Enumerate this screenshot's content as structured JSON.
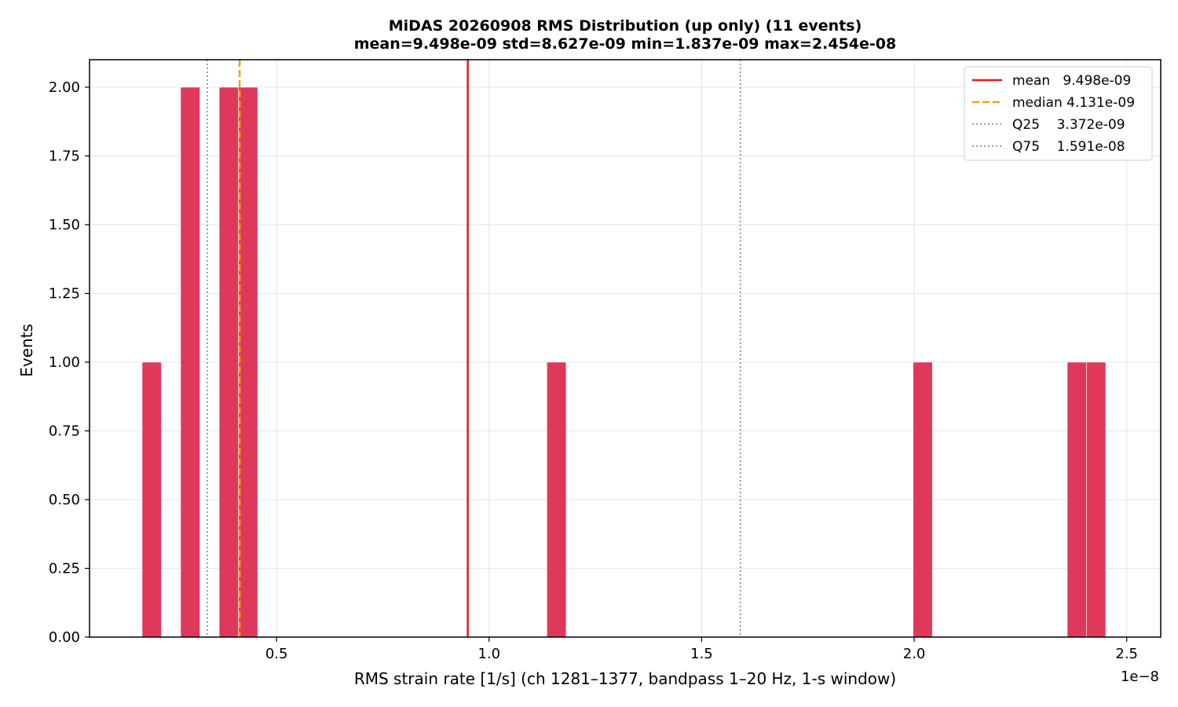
{
  "chart_data": {
    "type": "bar",
    "title": "MiDAS 20260908  RMS Distribution  (up only)  (11 events)",
    "subtitle": "mean=9.498e-09  std=8.627e-09  min=1.837e-09  max=2.454e-08",
    "xlabel": "RMS strain rate [1/s]  (ch 1281–1377, bandpass 1–20 Hz, 1-s window)",
    "ylabel": "Events",
    "x_offset_label": "1e−8",
    "x_scale": 1e-08,
    "xlim": [
      0.06,
      2.58
    ],
    "ylim": [
      0,
      2.1
    ],
    "x_ticks": [
      0.5,
      1.0,
      1.5,
      2.0,
      2.5
    ],
    "x_tick_labels": [
      "0.5",
      "1.0",
      "1.5",
      "2.0",
      "2.5"
    ],
    "y_ticks": [
      0,
      0.25,
      0.5,
      0.75,
      1.0,
      1.25,
      1.5,
      1.75,
      2.0
    ],
    "y_tick_labels": [
      "0.00",
      "0.25",
      "0.50",
      "0.75",
      "1.00",
      "1.25",
      "1.50",
      "1.75",
      "2.00"
    ],
    "grid": true,
    "bar_color": "#e0385a",
    "bins": [
      {
        "x0": 0.1837,
        "x1": 0.229,
        "count": 1
      },
      {
        "x0": 0.2743,
        "x1": 0.3197,
        "count": 2
      },
      {
        "x0": 0.365,
        "x1": 0.4103,
        "count": 2
      },
      {
        "x0": 0.4103,
        "x1": 0.4557,
        "count": 2
      },
      {
        "x0": 1.1359,
        "x1": 1.1812,
        "count": 1
      },
      {
        "x0": 1.9974,
        "x1": 2.0428,
        "count": 1
      },
      {
        "x0": 2.3601,
        "x1": 2.4054,
        "count": 1
      },
      {
        "x0": 2.4054,
        "x1": 2.4507,
        "count": 1
      }
    ],
    "reference_lines": [
      {
        "name": "mean",
        "value_label": "9.498e-09",
        "x": 0.9498,
        "color": "#e31a1c",
        "style": "solid"
      },
      {
        "name": "median",
        "value_label": "4.131e-09",
        "x": 0.4131,
        "color": "#f5a00a",
        "style": "dashed"
      },
      {
        "name": "Q25",
        "value_label": "3.372e-09",
        "x": 0.3372,
        "color": "#808080",
        "style": "dotted"
      },
      {
        "name": "Q75",
        "value_label": "1.591e-08",
        "x": 1.591,
        "color": "#808080",
        "style": "dotted"
      }
    ],
    "legend": {
      "placement": "top-right",
      "entries": [
        {
          "label": "mean   9.498e-09",
          "color": "#e31a1c",
          "style": "solid"
        },
        {
          "label": "median 4.131e-09",
          "color": "#f5a00a",
          "style": "dashed"
        },
        {
          "label": "Q25    3.372e-09",
          "color": "#808080",
          "style": "dotted"
        },
        {
          "label": "Q75    1.591e-08",
          "color": "#808080",
          "style": "dotted"
        }
      ]
    }
  }
}
